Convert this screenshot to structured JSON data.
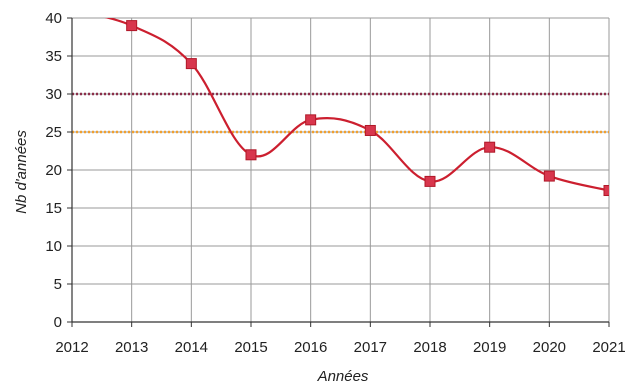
{
  "chart_data": {
    "type": "line",
    "title": "",
    "xlabel": "Années",
    "ylabel": "Nb d'années",
    "x": [
      "2012",
      "2013",
      "2014",
      "2015",
      "2016",
      "2017",
      "2018",
      "2019",
      "2020",
      "2021"
    ],
    "xlim": [
      2012,
      2021
    ],
    "ylim": [
      0,
      40
    ],
    "yticks": [
      "0",
      "5",
      "10",
      "15",
      "20",
      "25",
      "30",
      "35",
      "40"
    ],
    "grid": true,
    "legend": "none",
    "series": [
      {
        "values": [
          41,
          39,
          34,
          22,
          26.6,
          25.2,
          18.5,
          23,
          19.2,
          17.3
        ],
        "color": "#cc1f2f",
        "marker": "square",
        "style": "solid"
      }
    ],
    "reference_lines": [
      {
        "y": 30,
        "color": "#8b2f4a",
        "style": "dotted"
      },
      {
        "y": 25,
        "color": "#f0a030",
        "style": "dotted"
      }
    ]
  }
}
